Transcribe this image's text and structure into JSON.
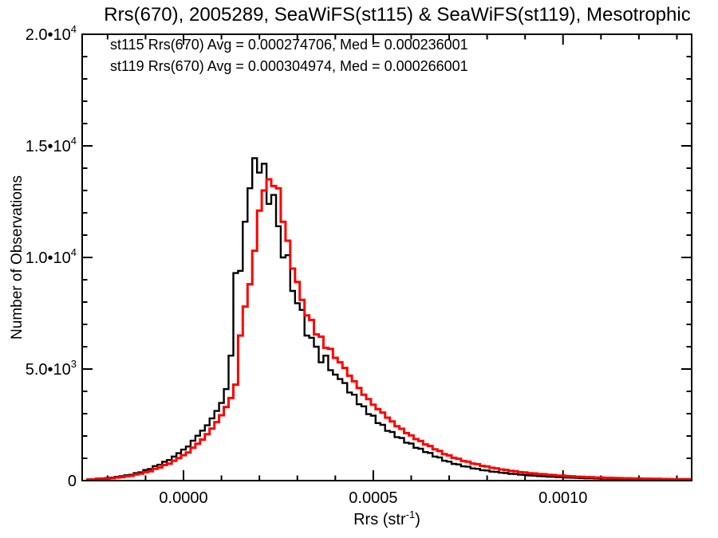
{
  "title": "Rrs(670), 2005289, SeaWiFS(st115) & SeaWiFS(st119), Mesotrophic",
  "legend": {
    "entries": [
      {
        "text": "st115 Rrs(670) Avg = 0.000274706, Med = 0.000236001",
        "color": "#000000"
      },
      {
        "text": "st119 Rrs(670) Avg = 0.000304974, Med = 0.000266001",
        "color": "#ff0000"
      }
    ]
  },
  "axes": {
    "ylabel": "Number of Observations",
    "xlabel": {
      "base": "Rrs (str",
      "sup": "-1",
      "end": ")"
    },
    "xlim": [
      -0.000267,
      0.001339
    ],
    "ylim": [
      0,
      20000
    ],
    "x_major_ticks": [
      {
        "value": 0.0,
        "label": "0.0000"
      },
      {
        "value": 0.0005,
        "label": "0.0005"
      },
      {
        "value": 0.001,
        "label": "0.0010"
      }
    ],
    "x_minor_step": 0.0001,
    "y_major_ticks": [
      {
        "value": 0,
        "label": "0",
        "sup": ""
      },
      {
        "value": 5000,
        "label": "5.0•10",
        "sup": "3"
      },
      {
        "value": 10000,
        "label": "1.0•10",
        "sup": "4"
      },
      {
        "value": 15000,
        "label": "1.5•10",
        "sup": "4"
      },
      {
        "value": 20000,
        "label": "2.0•10",
        "sup": "4"
      }
    ],
    "y_minor_step": 1000,
    "grid": false,
    "frame": true
  },
  "chart_data": {
    "type": "histogram-step",
    "title": "Rrs(670), 2005289, SeaWiFS(st115) & SeaWiFS(st119), Mesotrophic",
    "xlabel": "Rrs (str^-1)",
    "ylabel": "Number of Observations",
    "x_start": -0.00025,
    "x_step": 1.25e-05,
    "bin_width": 1.25e-05,
    "series": [
      {
        "name": "st115",
        "color": "#000000",
        "avg": 0.000274706,
        "med": 0.000236001,
        "values": [
          58,
          66,
          88,
          97,
          118,
          136,
          172,
          198,
          238,
          262,
          335,
          372,
          475,
          520,
          650,
          710,
          845,
          920,
          1080,
          1230,
          1390,
          1530,
          1790,
          2010,
          2240,
          2480,
          2790,
          3120,
          3480,
          4100,
          5600,
          9300,
          9400,
          11600,
          13100,
          14450,
          13800,
          14200,
          12400,
          12800,
          11400,
          10000,
          10100,
          8500,
          7950,
          7650,
          6500,
          6400,
          6000,
          5300,
          5600,
          4950,
          4750,
          4550,
          4370,
          3950,
          3850,
          3420,
          3330,
          2980,
          2910,
          2580,
          2500,
          2230,
          2180,
          1950,
          1910,
          1700,
          1660,
          1470,
          1430,
          1280,
          1240,
          1080,
          1040,
          890,
          850,
          750,
          725,
          640,
          620,
          545,
          528,
          468,
          455,
          405,
          393,
          352,
          341,
          305,
          295,
          266,
          258,
          231,
          222,
          202,
          196,
          176,
          170,
          154,
          149,
          136,
          132,
          120,
          116,
          106,
          103,
          95,
          93,
          85,
          82,
          76,
          74,
          69,
          67,
          62,
          61,
          57,
          55,
          51,
          50,
          47,
          46,
          43,
          43,
          40,
          40,
          38
        ]
      },
      {
        "name": "st119",
        "color": "#ff0000",
        "avg": 0.000304974,
        "med": 0.000266001,
        "values": [
          44,
          52,
          68,
          76,
          92,
          108,
          138,
          158,
          192,
          215,
          275,
          310,
          385,
          420,
          530,
          590,
          695,
          760,
          890,
          1010,
          1140,
          1260,
          1470,
          1650,
          1840,
          2080,
          2330,
          2620,
          2930,
          3300,
          3700,
          4300,
          6500,
          7800,
          8800,
          10300,
          12100,
          13000,
          13500,
          13200,
          13100,
          11600,
          10750,
          9500,
          8900,
          8100,
          7400,
          7200,
          6550,
          6450,
          5950,
          5900,
          5500,
          5300,
          5050,
          4700,
          4450,
          4150,
          3850,
          3650,
          3400,
          3200,
          3050,
          2820,
          2650,
          2440,
          2320,
          2130,
          2030,
          1860,
          1780,
          1620,
          1550,
          1400,
          1330,
          1190,
          1130,
          1020,
          980,
          880,
          845,
          765,
          735,
          660,
          635,
          575,
          550,
          500,
          480,
          435,
          418,
          380,
          367,
          333,
          321,
          293,
          285,
          258,
          250,
          226,
          220,
          199,
          194,
          176,
          173,
          157,
          155,
          140,
          139,
          126,
          124,
          113,
          112,
          102,
          102,
          93,
          93,
          85,
          85,
          77,
          77,
          71,
          71,
          66,
          66,
          61,
          61,
          58
        ]
      }
    ]
  }
}
